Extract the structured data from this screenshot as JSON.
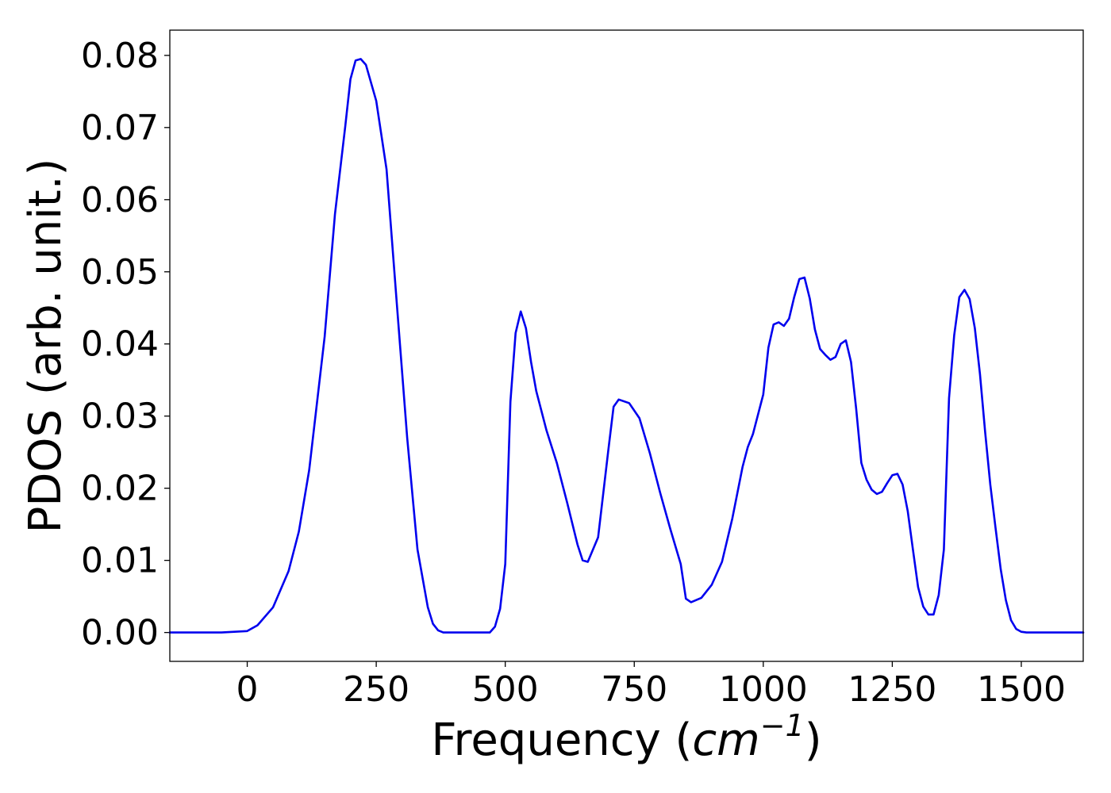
{
  "chart_data": {
    "type": "line",
    "title": "",
    "xlabel": {
      "prefix": "Frequency (",
      "unit_main": "cm",
      "unit_exponent": "−1",
      "suffix": ")"
    },
    "ylabel": "PDOS (arb. unit.)",
    "xlim": [
      -150,
      1620
    ],
    "ylim": [
      -0.004,
      0.0835
    ],
    "xticks": [
      0,
      250,
      500,
      750,
      1000,
      1250,
      1500
    ],
    "xtick_labels": [
      "0",
      "250",
      "500",
      "750",
      "1000",
      "1250",
      "1500"
    ],
    "yticks": [
      0.0,
      0.01,
      0.02,
      0.03,
      0.04,
      0.05,
      0.06,
      0.07,
      0.08
    ],
    "ytick_labels": [
      "0.00",
      "0.01",
      "0.02",
      "0.03",
      "0.04",
      "0.05",
      "0.06",
      "0.07",
      "0.08"
    ],
    "grid": false,
    "legend": "none",
    "series": [
      {
        "color": "#0000ee",
        "x": [
          -150,
          -50,
          0,
          20,
          50,
          80,
          100,
          120,
          150,
          170,
          190,
          200,
          210,
          220,
          230,
          250,
          270,
          290,
          310,
          330,
          350,
          360,
          370,
          380,
          400,
          470,
          480,
          490,
          500,
          510,
          520,
          530,
          540,
          550,
          560,
          580,
          600,
          620,
          640,
          650,
          660,
          680,
          700,
          710,
          720,
          740,
          760,
          780,
          800,
          820,
          840,
          850,
          860,
          880,
          900,
          920,
          940,
          960,
          970,
          980,
          1000,
          1010,
          1020,
          1030,
          1040,
          1050,
          1060,
          1070,
          1080,
          1090,
          1100,
          1110,
          1120,
          1130,
          1140,
          1150,
          1160,
          1170,
          1180,
          1190,
          1200,
          1210,
          1220,
          1230,
          1240,
          1250,
          1260,
          1270,
          1280,
          1290,
          1300,
          1310,
          1320,
          1330,
          1340,
          1350,
          1360,
          1370,
          1380,
          1390,
          1400,
          1410,
          1420,
          1430,
          1440,
          1450,
          1460,
          1470,
          1480,
          1490,
          1500,
          1510,
          1520,
          1620
        ],
        "y": [
          0.0,
          0.0,
          0.0002,
          0.001,
          0.0035,
          0.0085,
          0.014,
          0.0225,
          0.041,
          0.058,
          0.0702,
          0.0767,
          0.0793,
          0.0795,
          0.0787,
          0.0737,
          0.0642,
          0.0455,
          0.027,
          0.0115,
          0.0035,
          0.0012,
          0.0003,
          0.0,
          0.0,
          0.0,
          0.0008,
          0.0033,
          0.0095,
          0.032,
          0.0415,
          0.0445,
          0.0422,
          0.0375,
          0.0335,
          0.028,
          0.0235,
          0.018,
          0.0122,
          0.01,
          0.0098,
          0.0132,
          0.0254,
          0.0313,
          0.0323,
          0.0318,
          0.0297,
          0.0249,
          0.0194,
          0.0143,
          0.0095,
          0.0047,
          0.0042,
          0.0048,
          0.0066,
          0.0098,
          0.0158,
          0.023,
          0.0257,
          0.0275,
          0.033,
          0.0395,
          0.0427,
          0.043,
          0.0425,
          0.0435,
          0.0465,
          0.049,
          0.0492,
          0.0463,
          0.042,
          0.0393,
          0.0385,
          0.0378,
          0.0382,
          0.04,
          0.0405,
          0.0375,
          0.031,
          0.0235,
          0.0212,
          0.0198,
          0.0192,
          0.0195,
          0.0207,
          0.0218,
          0.022,
          0.0205,
          0.0168,
          0.0115,
          0.0063,
          0.0036,
          0.0025,
          0.0025,
          0.0052,
          0.0115,
          0.0325,
          0.0412,
          0.0465,
          0.0475,
          0.0462,
          0.0422,
          0.0358,
          0.0278,
          0.0205,
          0.0145,
          0.0088,
          0.0045,
          0.0017,
          0.0005,
          0.0001,
          0.0,
          0.0,
          0.0
        ]
      }
    ]
  }
}
